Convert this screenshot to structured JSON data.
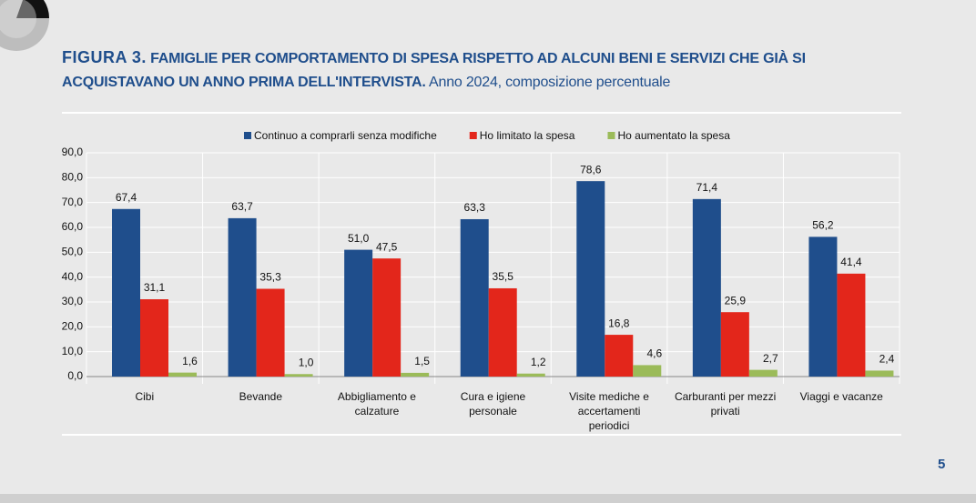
{
  "figure_label": "FIGURA 3.",
  "page_number": "5",
  "chart_data": {
    "type": "bar",
    "title": "FAMIGLIE PER COMPORTAMENTO DI SPESA RISPETTO AD ALCUNI BENI E SERVIZI CHE GIÀ SI ACQUISTAVANO UN ANNO PRIMA DELL'INTERVISTA.",
    "subtitle": "Anno 2024, composizione percentuale",
    "categories": [
      "Cibi",
      "Bevande",
      "Abbigliamento e calzature",
      "Cura e igiene personale",
      "Visite mediche e accertamenti periodici",
      "Carburanti per mezzi privati",
      "Viaggi e vacanze"
    ],
    "series": [
      {
        "name": "Continuo a comprarli senza modifiche",
        "color": "#1f4e8c",
        "values": [
          67.4,
          63.7,
          51.0,
          63.3,
          78.6,
          71.4,
          56.2
        ],
        "value_labels": [
          "67,4",
          "63,7",
          "51,0",
          "63,3",
          "78,6",
          "71,4",
          "56,2"
        ]
      },
      {
        "name": "Ho limitato la spesa",
        "color": "#e3261b",
        "values": [
          31.1,
          35.3,
          47.5,
          35.5,
          16.8,
          25.9,
          41.4
        ],
        "value_labels": [
          "31,1",
          "35,3",
          "47,5",
          "35,5",
          "16,8",
          "25,9",
          "41,4"
        ]
      },
      {
        "name": "Ho aumentato la spesa",
        "color": "#9bbb59",
        "values": [
          1.6,
          1.0,
          1.5,
          1.2,
          4.6,
          2.7,
          2.4
        ],
        "value_labels": [
          "1,6",
          "1,0",
          "1,5",
          "1,2",
          "4,6",
          "2,7",
          "2,4"
        ]
      }
    ],
    "ylim": [
      0,
      90
    ],
    "yticks": [
      {
        "value": 0,
        "label": "0,0"
      },
      {
        "value": 10,
        "label": "10,0"
      },
      {
        "value": 20,
        "label": "20,0"
      },
      {
        "value": 30,
        "label": "30,0"
      },
      {
        "value": 40,
        "label": "40,0"
      },
      {
        "value": 50,
        "label": "50,0"
      },
      {
        "value": 60,
        "label": "60,0"
      },
      {
        "value": 70,
        "label": "70,0"
      },
      {
        "value": 80,
        "label": "80,0"
      },
      {
        "value": 90,
        "label": "90,0"
      }
    ],
    "grid": true,
    "legend": "top"
  }
}
